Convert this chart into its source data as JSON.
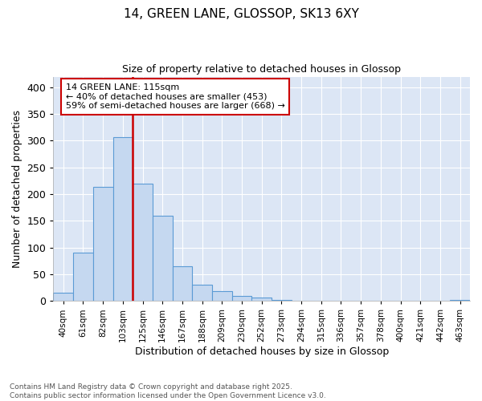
{
  "title1": "14, GREEN LANE, GLOSSOP, SK13 6XY",
  "title2": "Size of property relative to detached houses in Glossop",
  "xlabel": "Distribution of detached houses by size in Glossop",
  "ylabel": "Number of detached properties",
  "categories": [
    "40sqm",
    "61sqm",
    "82sqm",
    "103sqm",
    "125sqm",
    "146sqm",
    "167sqm",
    "188sqm",
    "209sqm",
    "230sqm",
    "252sqm",
    "273sqm",
    "294sqm",
    "315sqm",
    "336sqm",
    "357sqm",
    "378sqm",
    "400sqm",
    "421sqm",
    "442sqm",
    "463sqm"
  ],
  "values": [
    15,
    90,
    213,
    307,
    220,
    160,
    65,
    30,
    18,
    10,
    6,
    2,
    1,
    0,
    0,
    0,
    0,
    0,
    0,
    0,
    2
  ],
  "bar_color": "#c5d8f0",
  "bar_edge_color": "#5b9bd5",
  "vline_color": "#cc0000",
  "annotation_text": "14 GREEN LANE: 115sqm\n← 40% of detached houses are smaller (453)\n59% of semi-detached houses are larger (668) →",
  "annotation_box_color": "white",
  "annotation_box_edgecolor": "#cc0000",
  "plot_bg_color": "#dce6f5",
  "fig_bg_color": "#ffffff",
  "grid_color": "white",
  "ylim": [
    0,
    420
  ],
  "yticks": [
    0,
    50,
    100,
    150,
    200,
    250,
    300,
    350,
    400
  ],
  "footer": "Contains HM Land Registry data © Crown copyright and database right 2025.\nContains public sector information licensed under the Open Government Licence v3.0."
}
